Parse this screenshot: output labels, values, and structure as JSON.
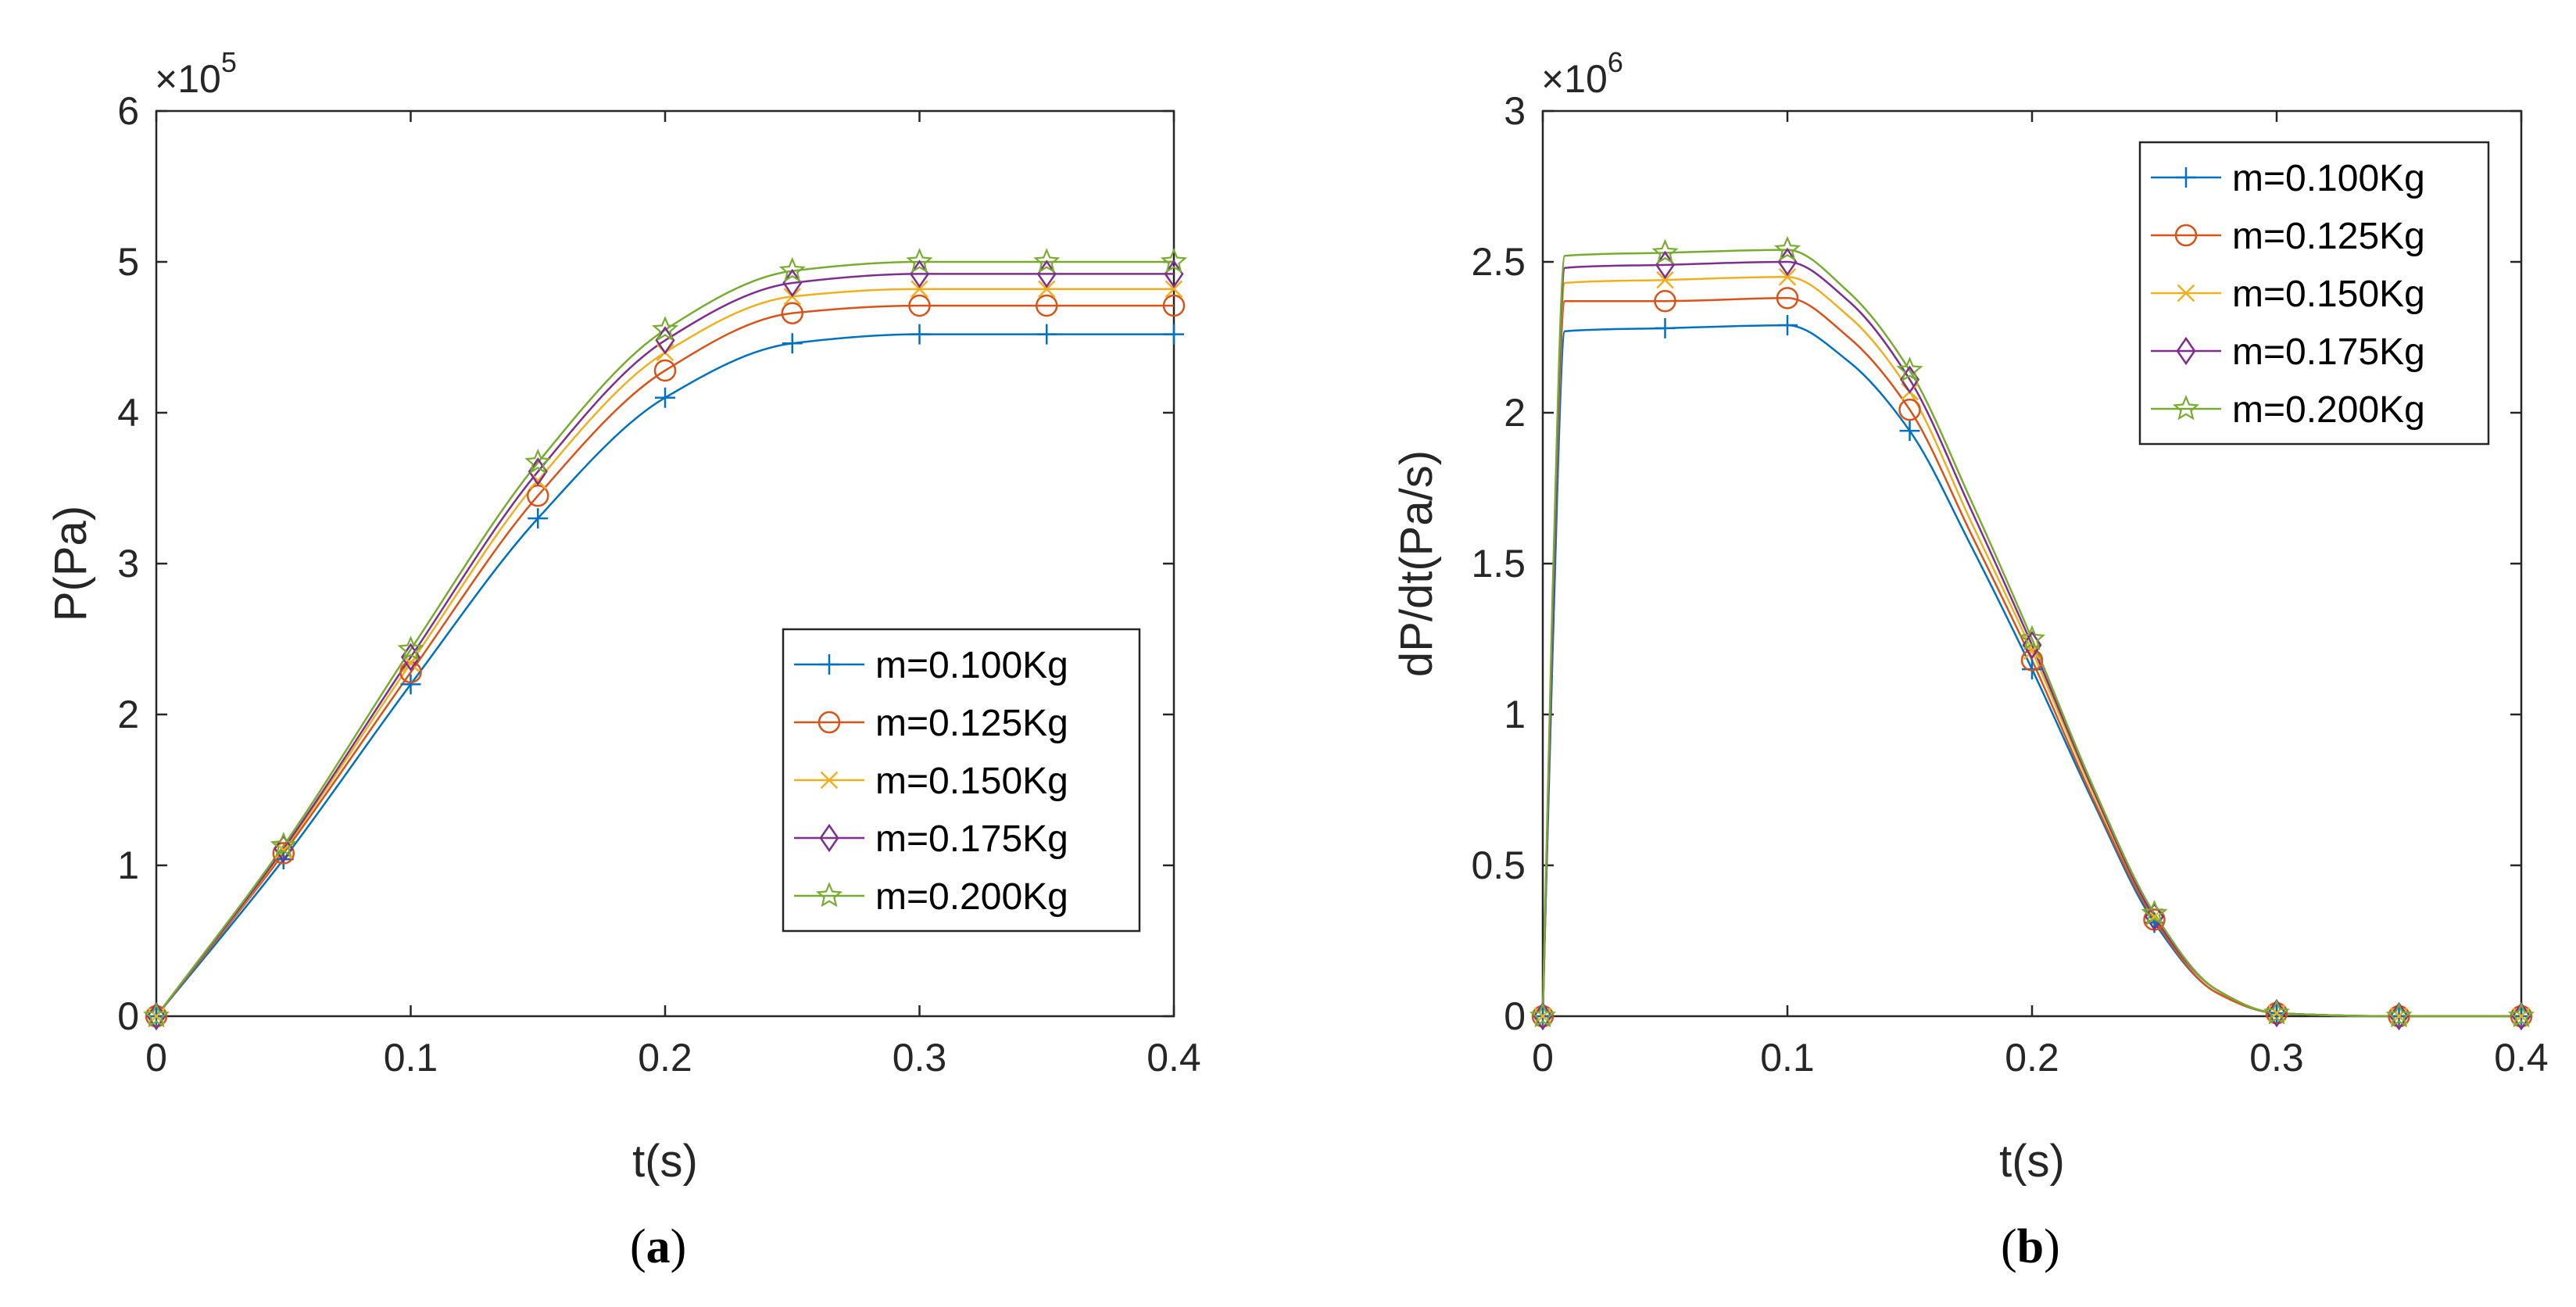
{
  "colors": {
    "series": [
      "#0072BD",
      "#D95319",
      "#EDB120",
      "#7E2F8E",
      "#77AC30"
    ],
    "axis": "#262626"
  },
  "chart_data": [
    {
      "type": "line",
      "panel_label": {
        "open": "(",
        "letter": "a",
        "close": ")"
      },
      "xlabel": "t(s)",
      "ylabel": "P(Pa)",
      "exponent": {
        "base": "×10",
        "power": "5"
      },
      "xlim": [
        0,
        0.4
      ],
      "ylim": [
        0,
        6
      ],
      "xticks": [
        "0",
        "0.1",
        "0.2",
        "0.3",
        "0.4"
      ],
      "yticks": [
        "0",
        "1",
        "2",
        "3",
        "4",
        "5",
        "6"
      ],
      "legend_position": "bottom-right",
      "x": [
        0,
        0.05,
        0.1,
        0.15,
        0.2,
        0.25,
        0.3,
        0.35,
        0.4
      ],
      "series": [
        {
          "name": "m=0.100Kg",
          "marker": "plus",
          "values": [
            0,
            1.04,
            2.2,
            3.3,
            4.1,
            4.46,
            4.52,
            4.52,
            4.52
          ]
        },
        {
          "name": "m=0.125Kg",
          "marker": "circle",
          "values": [
            0,
            1.08,
            2.28,
            3.45,
            4.28,
            4.66,
            4.71,
            4.71,
            4.71
          ]
        },
        {
          "name": "m=0.150Kg",
          "marker": "x",
          "values": [
            0,
            1.1,
            2.34,
            3.55,
            4.4,
            4.77,
            4.82,
            4.82,
            4.82
          ]
        },
        {
          "name": "m=0.175Kg",
          "marker": "diamond",
          "values": [
            0,
            1.11,
            2.38,
            3.61,
            4.48,
            4.86,
            4.92,
            4.92,
            4.92
          ]
        },
        {
          "name": "m=0.200Kg",
          "marker": "star",
          "values": [
            0,
            1.13,
            2.43,
            3.67,
            4.55,
            4.94,
            5.0,
            5.0,
            5.0
          ]
        }
      ]
    },
    {
      "type": "line",
      "panel_label": {
        "open": "(",
        "letter": "b",
        "close": ")"
      },
      "xlabel": "t(s)",
      "ylabel": "dP/dt(Pa/s)",
      "exponent": {
        "base": "×10",
        "power": "6"
      },
      "xlim": [
        0,
        0.4
      ],
      "ylim": [
        0,
        3
      ],
      "xticks": [
        "0",
        "0.1",
        "0.2",
        "0.3",
        "0.4"
      ],
      "yticks": [
        "0",
        "0.5",
        "1",
        "1.5",
        "2",
        "2.5",
        "3"
      ],
      "legend_position": "top-right",
      "x": [
        0,
        0.004,
        0.009,
        0.05,
        0.1,
        0.125,
        0.15,
        0.175,
        0.2,
        0.225,
        0.25,
        0.275,
        0.3,
        0.35,
        0.4
      ],
      "series": [
        {
          "name": "m=0.100Kg",
          "marker": "plus",
          "values": [
            0,
            1.2,
            2.27,
            2.28,
            2.29,
            2.17,
            1.94,
            1.56,
            1.15,
            0.71,
            0.31,
            0.08,
            0.01,
            0,
            0
          ]
        },
        {
          "name": "m=0.125Kg",
          "marker": "circle",
          "values": [
            0,
            1.3,
            2.37,
            2.37,
            2.38,
            2.25,
            2.01,
            1.6,
            1.18,
            0.72,
            0.32,
            0.08,
            0.01,
            0,
            0
          ]
        },
        {
          "name": "m=0.150Kg",
          "marker": "x",
          "values": [
            0,
            1.3,
            2.43,
            2.44,
            2.45,
            2.32,
            2.07,
            1.64,
            1.21,
            0.74,
            0.33,
            0.09,
            0.01,
            0,
            0
          ]
        },
        {
          "name": "m=0.175Kg",
          "marker": "diamond",
          "values": [
            0,
            1.3,
            2.48,
            2.49,
            2.5,
            2.37,
            2.11,
            1.68,
            1.23,
            0.75,
            0.33,
            0.09,
            0.01,
            0,
            0
          ]
        },
        {
          "name": "m=0.200Kg",
          "marker": "star",
          "values": [
            0,
            1.4,
            2.52,
            2.53,
            2.54,
            2.4,
            2.14,
            1.71,
            1.25,
            0.76,
            0.34,
            0.09,
            0.01,
            0,
            0
          ]
        }
      ]
    }
  ]
}
